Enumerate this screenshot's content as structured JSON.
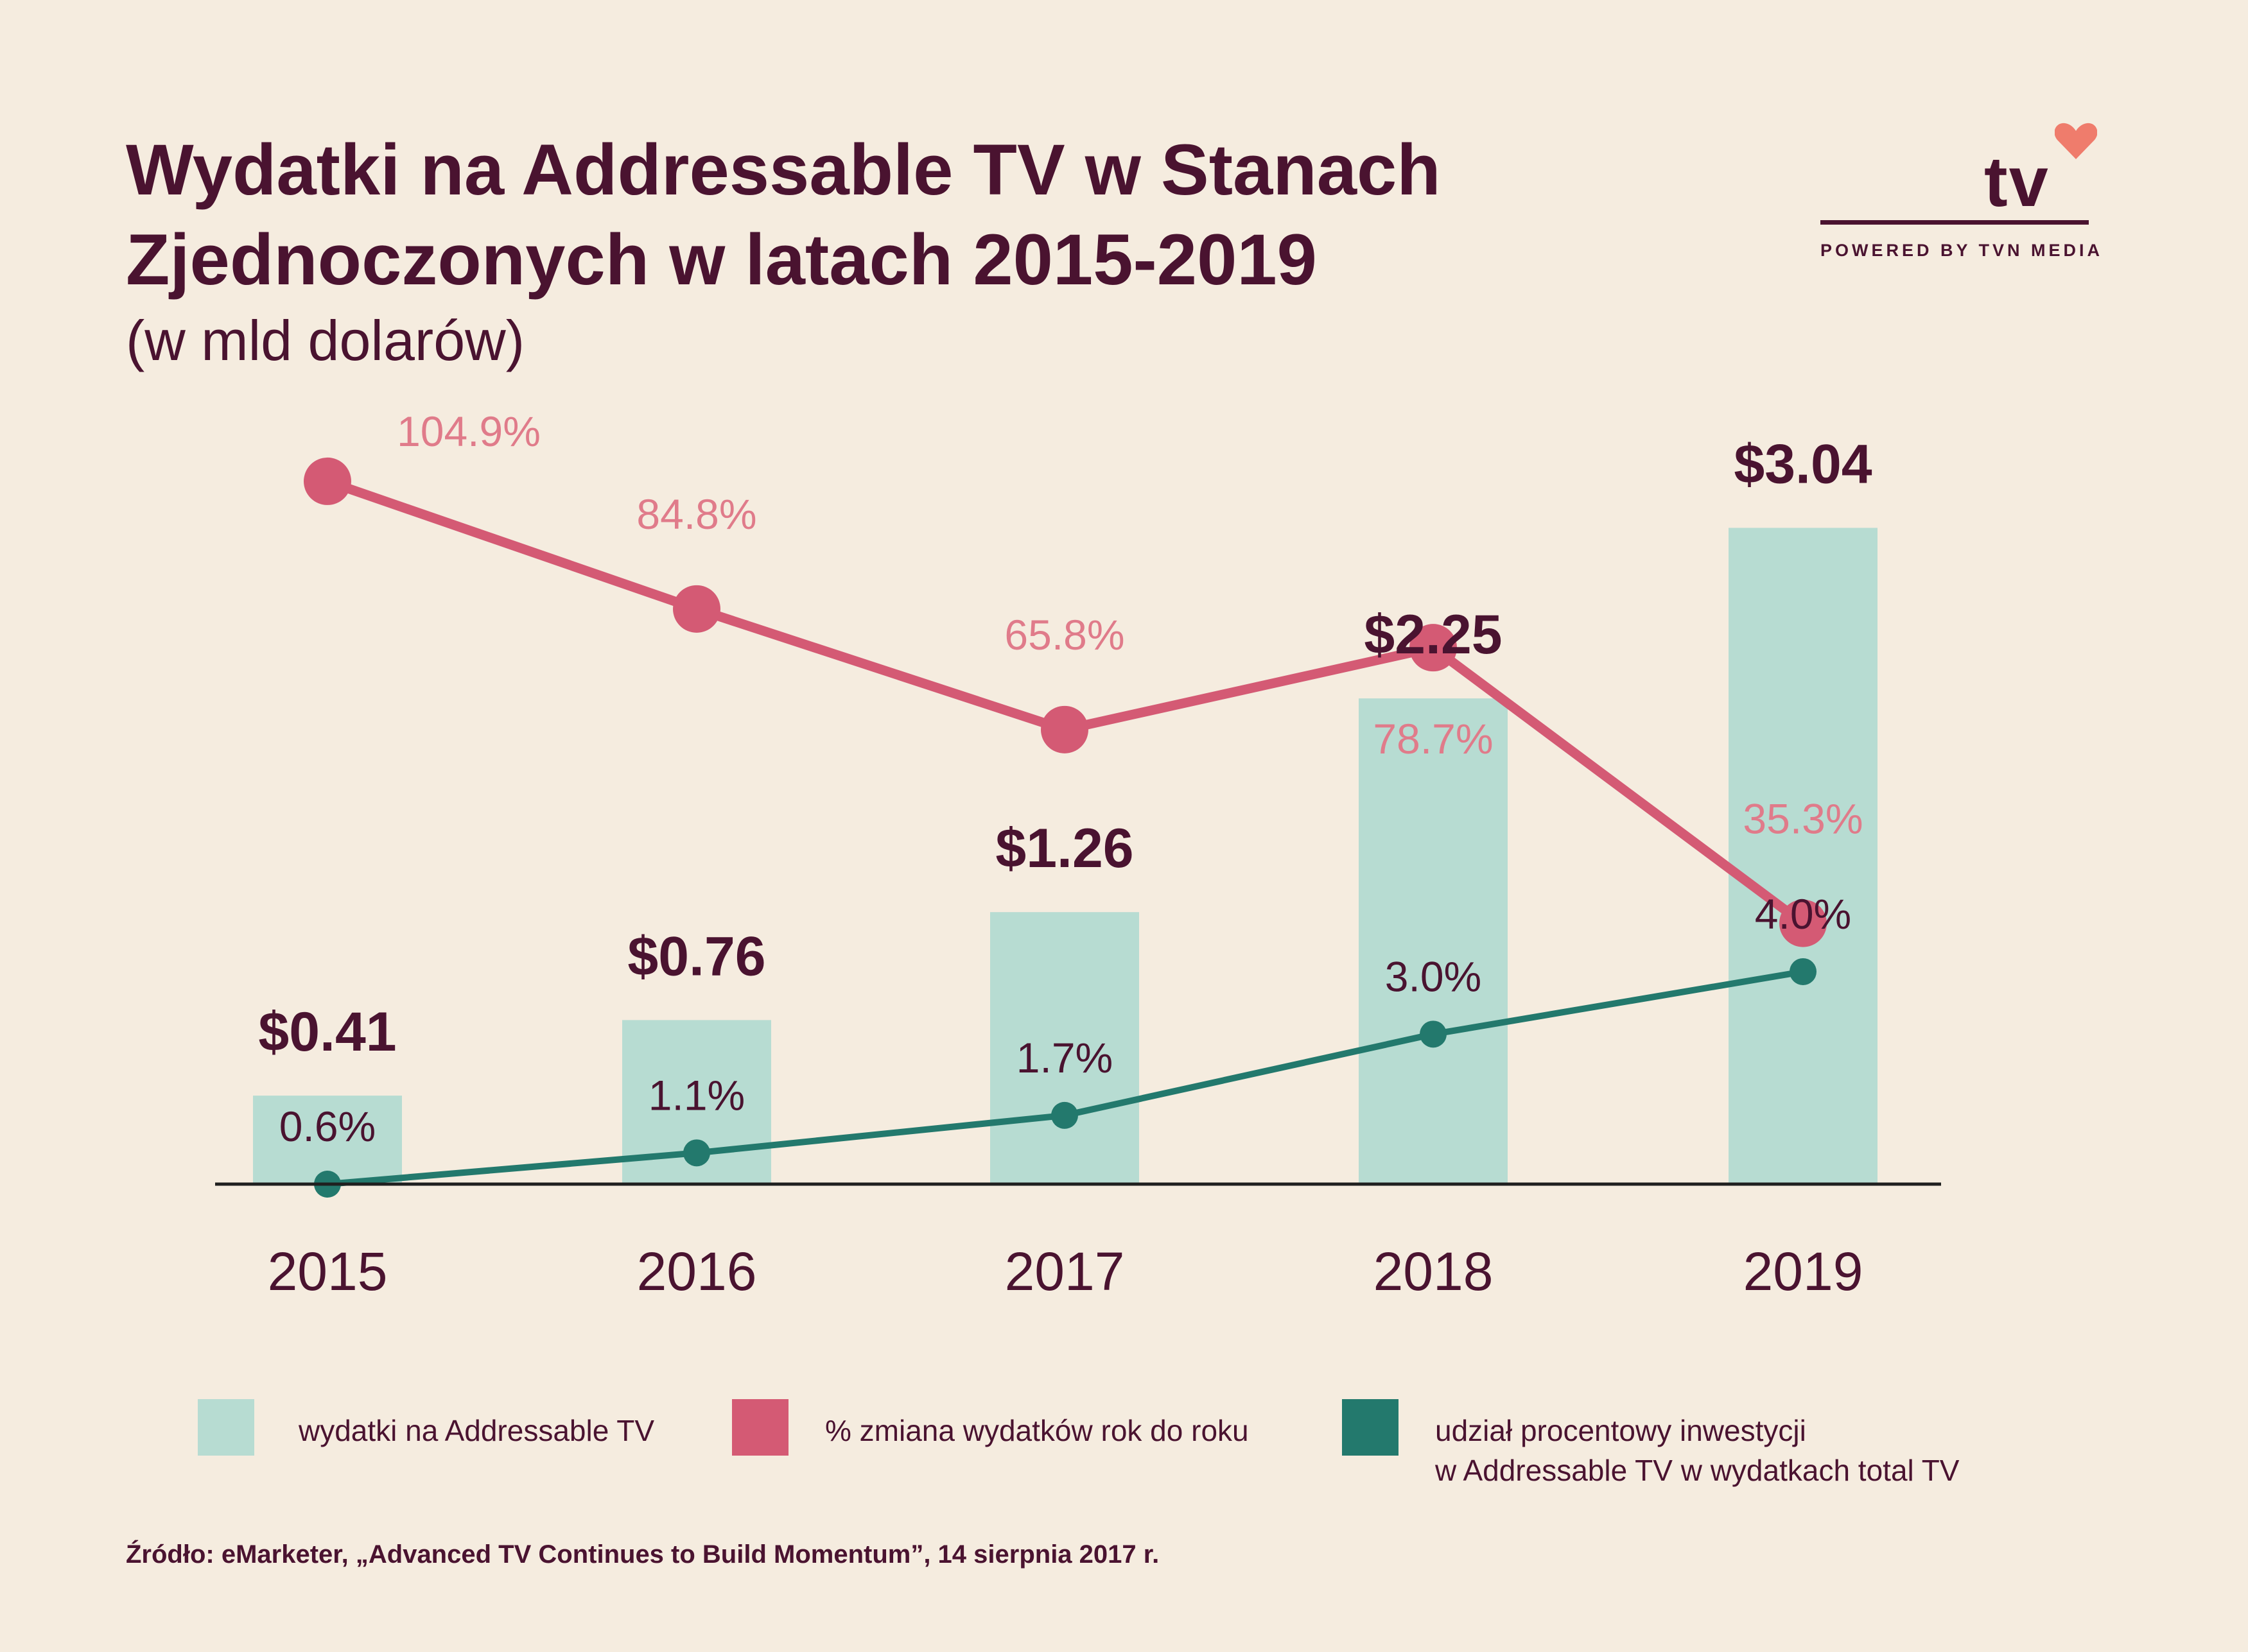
{
  "header": {
    "title_line1": "Wydatki na Addressable TV w Stanach",
    "title_line2": "Zjednoczonych w latach 2015-2019",
    "subtitle": "(w mld dolarów)"
  },
  "logo": {
    "text": "tv",
    "powered_by": "POWERED BY TVN MEDIA",
    "heart_icon": "heart-icon"
  },
  "colors": {
    "background": "#f5ecdf",
    "bar": "#b7dcd2",
    "line_change": "#d45a74",
    "line_share": "#23796d",
    "text": "#4a1330",
    "change_label": "#e07b8a"
  },
  "chart_data": {
    "type": "bar",
    "categories": [
      "2015",
      "2016",
      "2017",
      "2018",
      "2019"
    ],
    "bar_values": [
      0.41,
      0.76,
      1.26,
      2.25,
      3.04
    ],
    "bar_labels": [
      "$0.41",
      "$0.76",
      "$1.26",
      "$2.25",
      "$3.04"
    ],
    "series": [
      {
        "name": "wydatki na Addressable TV",
        "type": "bar",
        "values": [
          0.41,
          0.76,
          1.26,
          2.25,
          3.04
        ]
      },
      {
        "name": "% zmiana wydatków rok do roku",
        "type": "line",
        "values": [
          104.9,
          84.8,
          65.8,
          78.7,
          35.3
        ],
        "labels": [
          "104.9%",
          "84.8%",
          "65.8%",
          "78.7%",
          "35.3%"
        ]
      },
      {
        "name": "udział procentowy inwestycji w Addressable TV w wydatkach total TV",
        "type": "line",
        "values": [
          0.6,
          1.1,
          1.7,
          3.0,
          4.0
        ],
        "labels": [
          "0.6%",
          "1.1%",
          "1.7%",
          "3.0%",
          "4.0%"
        ]
      }
    ],
    "bar_ylim": [
      0,
      3.3
    ],
    "change_ylim": [
      20,
      115
    ],
    "share_ylim": [
      0.6,
      12
    ],
    "legend_position": "bottom",
    "grid": false
  },
  "legend": {
    "items": [
      {
        "label": "wydatki na Addressable TV"
      },
      {
        "label": "% zmiana wydatków rok do roku"
      },
      {
        "label_line1": "udział procentowy inwestycji",
        "label_line2": "w Addressable TV w wydatkach total TV"
      }
    ]
  },
  "source": "Źródło: eMarketer, „Advanced TV Continues to Build Momentum”, 14 sierpnia 2017 r."
}
